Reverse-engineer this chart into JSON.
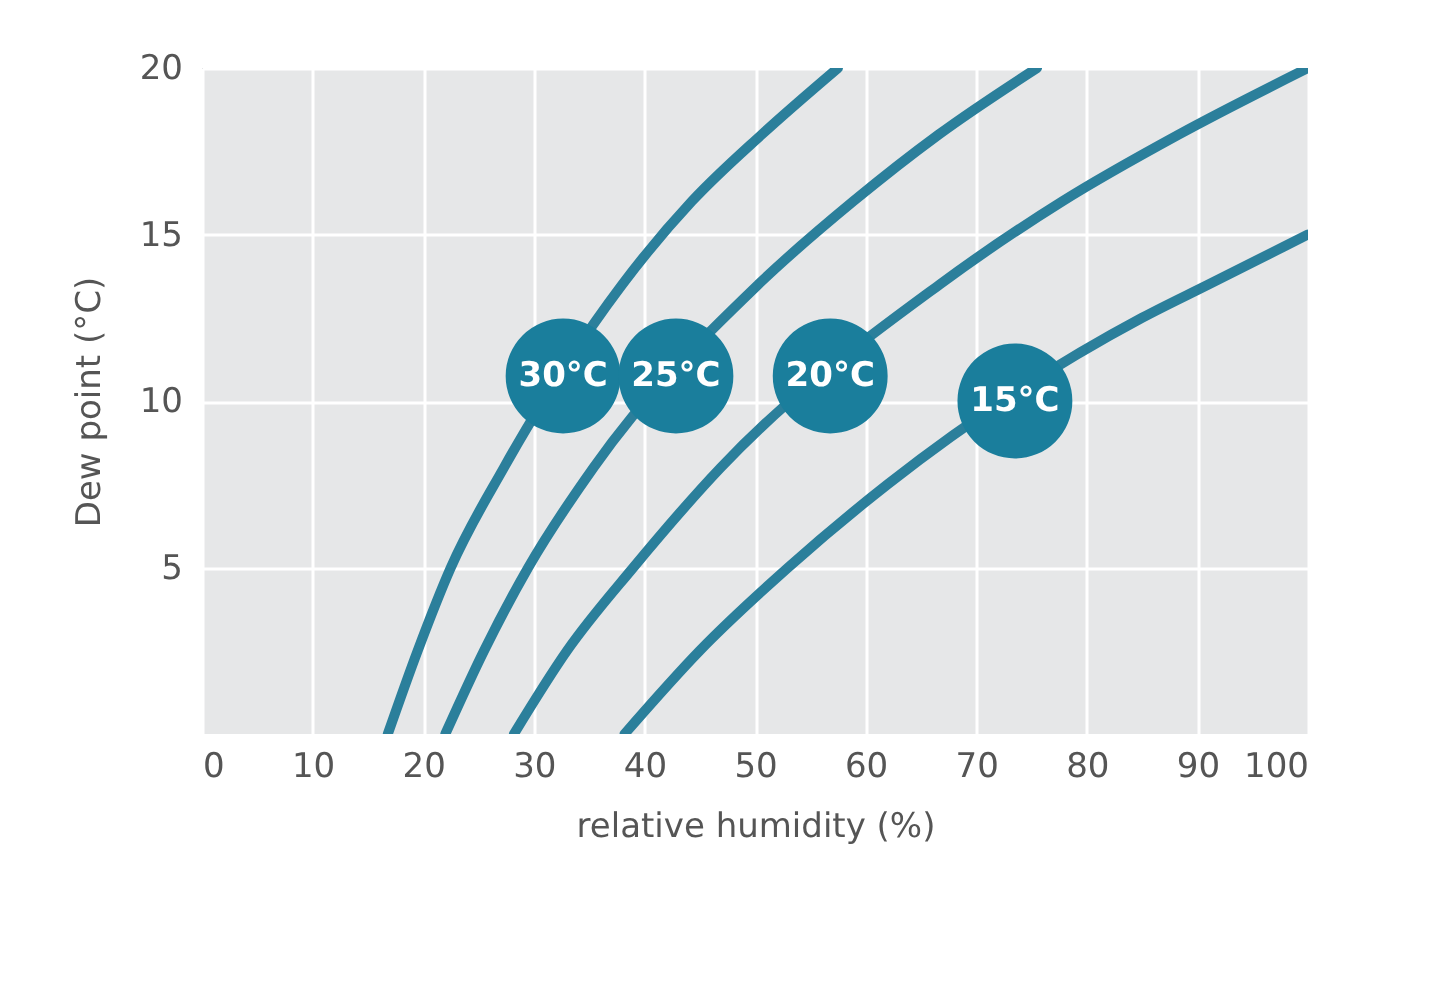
{
  "chart_data": {
    "type": "line",
    "xlabel": "relative humidity (%)",
    "ylabel": "Dew point  (°C)",
    "xlim": [
      0,
      100
    ],
    "ylim": [
      0,
      20
    ],
    "xticks": [
      0,
      10,
      20,
      30,
      40,
      50,
      60,
      70,
      80,
      90,
      100
    ],
    "yticks": [
      5,
      10,
      15,
      20
    ],
    "grid": true,
    "series": [
      {
        "name": "30°C",
        "color": "#2b7f9b",
        "x": [
          16.8,
          19.5,
          22.5,
          27.3,
          38,
          44.3,
          50.6,
          57.5
        ],
        "values": [
          0,
          2.5,
          5,
          8,
          13.5,
          16,
          18,
          20
        ]
      },
      {
        "name": "25°C",
        "color": "#2b7f9b",
        "x": [
          22,
          25.5,
          29.5,
          35.4,
          50.3,
          58.9,
          66.6,
          75.5
        ],
        "values": [
          0,
          2.5,
          5,
          8,
          13.5,
          16,
          18,
          20
        ]
      },
      {
        "name": "20°C",
        "color": "#2b7f9b",
        "x": [
          28.2,
          33,
          39,
          46.9,
          66.7,
          77.8,
          88.3,
          100
        ],
        "values": [
          0,
          2.5,
          5,
          8,
          13.5,
          16,
          18,
          20
        ]
      },
      {
        "name": "15°C",
        "color": "#2b7f9b",
        "x": [
          38.2,
          45,
          53,
          62,
          85,
          91,
          95.5,
          100
        ],
        "values": [
          0,
          2.5,
          5,
          7.5,
          12.5,
          13.5,
          14.25,
          15
        ]
      }
    ]
  }
}
